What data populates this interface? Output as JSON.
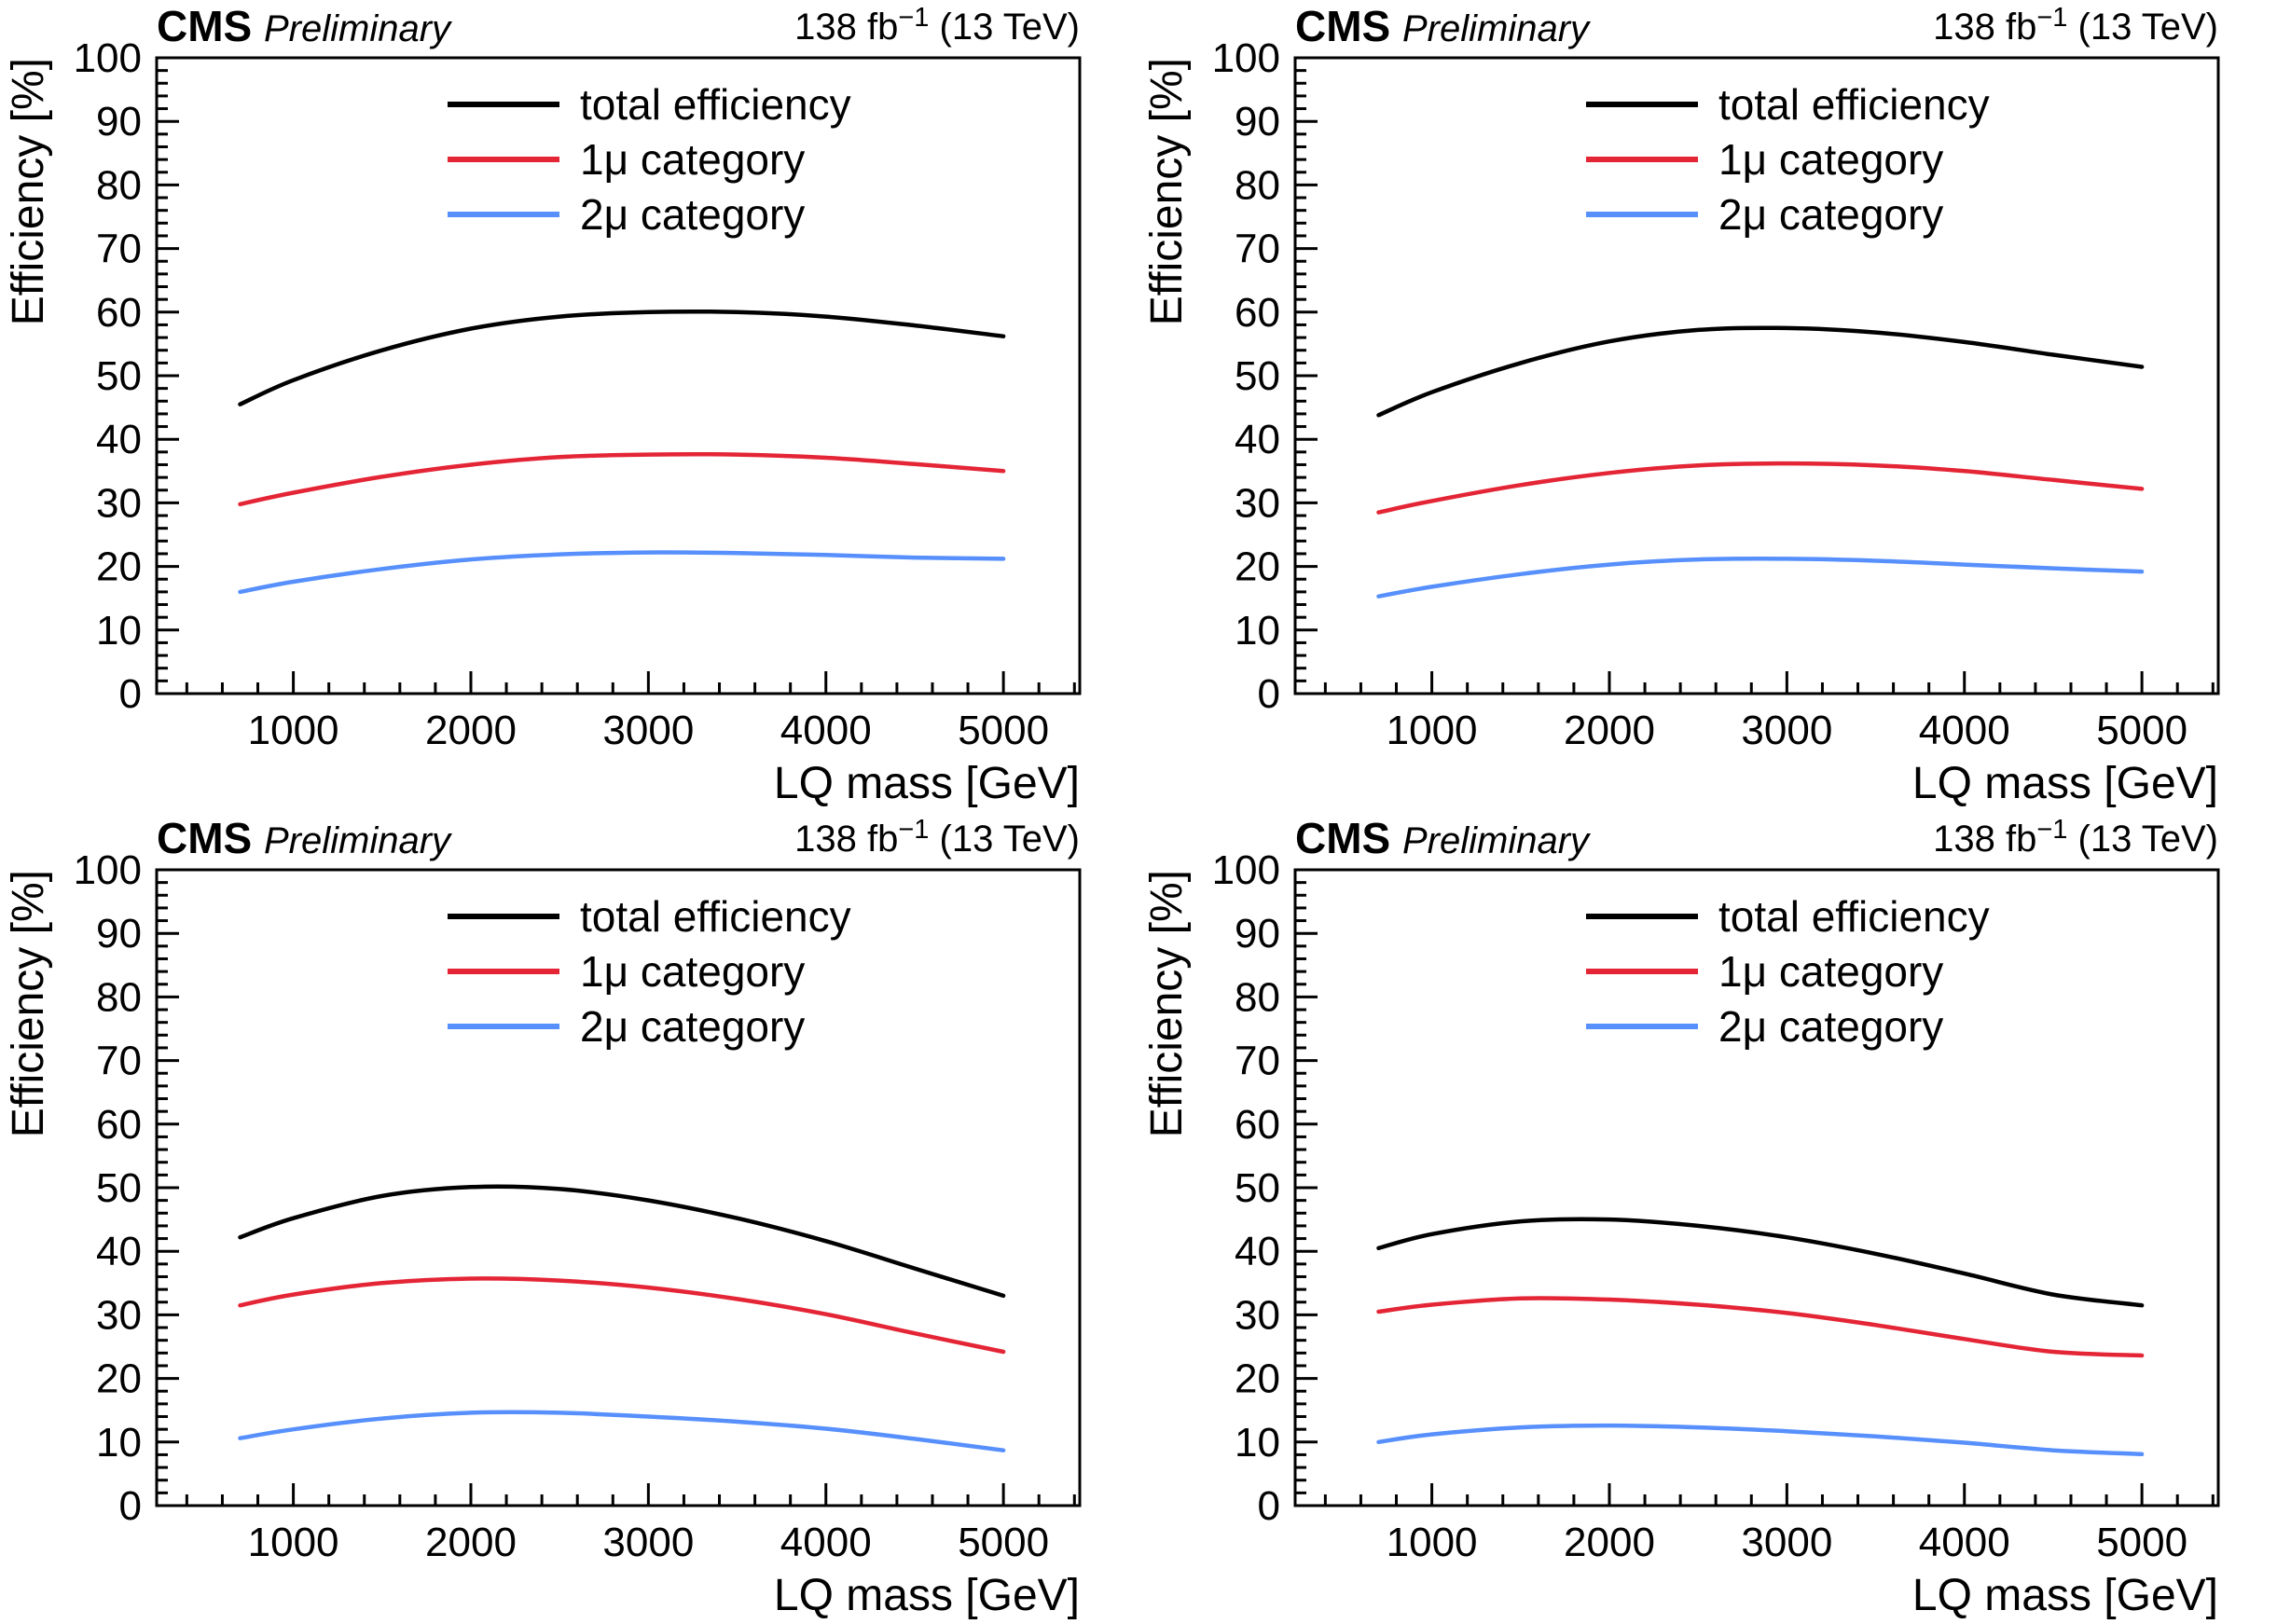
{
  "page": {
    "background": "#ffffff"
  },
  "colors": {
    "total": "#000000",
    "mu1": "#e42536",
    "mu2": "#5790fc",
    "axis": "#000000",
    "text": "#000000"
  },
  "header": {
    "experiment": "CMS",
    "status": "Preliminary",
    "lumi_prefix": "138 fb",
    "lumi_sup": "−1",
    "lumi_suffix": " (13 TeV)"
  },
  "axes": {
    "x_title": "LQ mass [GeV]",
    "y_title": "Efficiency [%]",
    "x_major_ticks": [
      1000,
      2000,
      3000,
      4000,
      5000
    ],
    "y_major_ticks": [
      0,
      10,
      20,
      30,
      40,
      50,
      60,
      70,
      80,
      90,
      100
    ],
    "x_minor_step": 200,
    "y_minor_step": 2,
    "x_range": [
      230,
      5430
    ],
    "y_range": [
      0,
      100
    ]
  },
  "legend": [
    {
      "label": "total efficiency",
      "color_key": "total"
    },
    {
      "label": "1μ category",
      "color_key": "mu1"
    },
    {
      "label": "2μ category",
      "color_key": "mu2"
    }
  ],
  "chart_data": [
    {
      "position": "top-left",
      "type": "line",
      "title": "CMS Preliminary",
      "annotation": "138 fb−1 (13 TeV)",
      "xlabel": "LQ mass [GeV]",
      "ylabel": "Efficiency [%]",
      "xlim": [
        230,
        5430
      ],
      "ylim": [
        0,
        100
      ],
      "grid": false,
      "legend_position": "top-center",
      "x": [
        700,
        1000,
        1500,
        2000,
        2500,
        3000,
        3500,
        4000,
        4500,
        5000
      ],
      "series": [
        {
          "name": "total efficiency",
          "color_key": "total",
          "values": [
            45.5,
            49.3,
            54.0,
            57.4,
            59.3,
            60.0,
            60.0,
            59.3,
            57.9,
            56.2
          ]
        },
        {
          "name": "1μ category",
          "color_key": "mu1",
          "values": [
            29.8,
            31.6,
            34.1,
            36.0,
            37.2,
            37.6,
            37.6,
            37.1,
            36.1,
            35.0
          ]
        },
        {
          "name": "2μ category",
          "color_key": "mu2",
          "values": [
            16.0,
            17.6,
            19.6,
            21.1,
            21.9,
            22.2,
            22.1,
            21.8,
            21.4,
            21.2
          ]
        }
      ]
    },
    {
      "position": "top-right",
      "type": "line",
      "title": "CMS Preliminary",
      "annotation": "138 fb−1 (13 TeV)",
      "xlabel": "LQ mass [GeV]",
      "ylabel": "Efficiency [%]",
      "xlim": [
        230,
        5430
      ],
      "ylim": [
        0,
        100
      ],
      "grid": false,
      "legend_position": "top-center",
      "x": [
        700,
        1000,
        1500,
        2000,
        2500,
        3000,
        3500,
        4000,
        4500,
        5000
      ],
      "series": [
        {
          "name": "total efficiency",
          "color_key": "total",
          "values": [
            43.8,
            47.4,
            52.0,
            55.4,
            57.2,
            57.5,
            56.8,
            55.3,
            53.3,
            51.4
          ]
        },
        {
          "name": "1μ category",
          "color_key": "mu1",
          "values": [
            28.5,
            30.3,
            32.8,
            34.7,
            35.9,
            36.2,
            35.9,
            35.0,
            33.6,
            32.2
          ]
        },
        {
          "name": "2μ category",
          "color_key": "mu2",
          "values": [
            15.3,
            16.8,
            18.8,
            20.3,
            21.1,
            21.2,
            20.9,
            20.3,
            19.7,
            19.2
          ]
        }
      ]
    },
    {
      "position": "bottom-left",
      "type": "line",
      "title": "CMS Preliminary",
      "annotation": "138 fb−1 (13 TeV)",
      "xlabel": "LQ mass [GeV]",
      "ylabel": "Efficiency [%]",
      "xlim": [
        230,
        5430
      ],
      "ylim": [
        0,
        100
      ],
      "grid": false,
      "legend_position": "top-center",
      "x": [
        700,
        1000,
        1500,
        2000,
        2500,
        3000,
        3500,
        4000,
        4500,
        5000
      ],
      "series": [
        {
          "name": "total efficiency",
          "color_key": "total",
          "values": [
            42.2,
            45.2,
            48.7,
            50.1,
            49.8,
            48.0,
            45.2,
            41.6,
            37.3,
            33.0
          ]
        },
        {
          "name": "1μ category",
          "color_key": "mu1",
          "values": [
            31.5,
            33.2,
            35.0,
            35.7,
            35.4,
            34.3,
            32.5,
            30.1,
            27.1,
            24.2
          ]
        },
        {
          "name": "2μ category",
          "color_key": "mu2",
          "values": [
            10.6,
            12.0,
            13.7,
            14.6,
            14.6,
            14.0,
            13.2,
            12.1,
            10.5,
            8.7
          ]
        }
      ]
    },
    {
      "position": "bottom-right",
      "type": "line",
      "title": "CMS Preliminary",
      "annotation": "138 fb−1 (13 TeV)",
      "xlabel": "LQ mass [GeV]",
      "ylabel": "Efficiency [%]",
      "xlim": [
        230,
        5430
      ],
      "ylim": [
        0,
        100
      ],
      "grid": false,
      "legend_position": "top-center",
      "x": [
        700,
        1000,
        1500,
        2000,
        2500,
        3000,
        3500,
        4000,
        4500,
        5000
      ],
      "series": [
        {
          "name": "total efficiency",
          "color_key": "total",
          "values": [
            40.5,
            42.7,
            44.7,
            45.0,
            44.0,
            42.2,
            39.6,
            36.5,
            33.2,
            31.5
          ]
        },
        {
          "name": "1μ category",
          "color_key": "mu1",
          "values": [
            30.5,
            31.6,
            32.6,
            32.4,
            31.6,
            30.3,
            28.4,
            26.2,
            24.2,
            23.6
          ]
        },
        {
          "name": "2μ category",
          "color_key": "mu2",
          "values": [
            10.0,
            11.2,
            12.3,
            12.6,
            12.3,
            11.7,
            10.9,
            9.9,
            8.7,
            8.1
          ]
        }
      ]
    }
  ]
}
